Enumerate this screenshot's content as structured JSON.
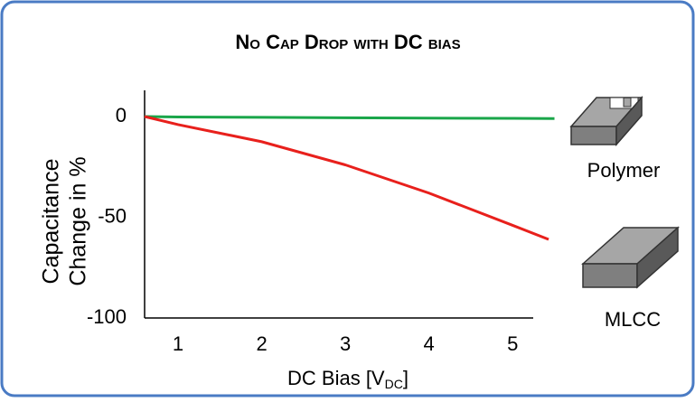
{
  "chart_data": {
    "type": "line",
    "title": "No Cap Drop with DC bias",
    "ylabel": [
      "Capacitance",
      "Change in %"
    ],
    "xlabel": [
      "DC Bias [V",
      "DC",
      "]"
    ],
    "xlim": [
      0.6,
      5.3
    ],
    "ylim": [
      -100,
      13
    ],
    "xticks": [
      1,
      2,
      3,
      4,
      5
    ],
    "yticks": [
      0,
      -50,
      -100
    ],
    "grid": false,
    "series": [
      {
        "name": "Polymer",
        "color": "#1aa64a",
        "x": [
          0.6,
          1,
          2,
          3,
          4,
          5,
          5.5
        ],
        "values": [
          0,
          -0.2,
          -0.4,
          -0.6,
          -0.8,
          -0.9,
          -1
        ]
      },
      {
        "name": "MLCC",
        "color": "#e8201c",
        "x": [
          0.6,
          1,
          2,
          3,
          4,
          5,
          5.43
        ],
        "values": [
          0,
          -4,
          -12.5,
          -24,
          -38,
          -54,
          -61
        ]
      }
    ]
  }
}
